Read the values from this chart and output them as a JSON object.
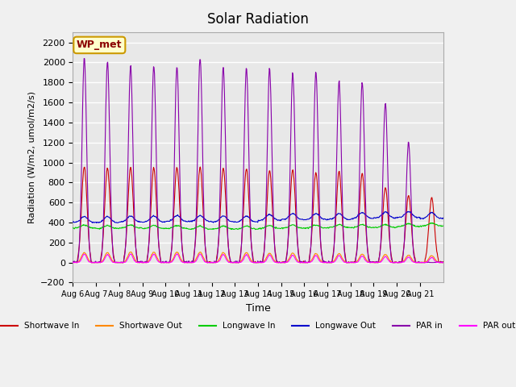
{
  "title": "Solar Radiation",
  "ylabel": "Radiation (W/m2, umol/m2/s)",
  "xlabel": "Time",
  "ylim": [
    -200,
    2300
  ],
  "yticks": [
    -200,
    0,
    200,
    400,
    600,
    800,
    1000,
    1200,
    1400,
    1600,
    1800,
    2000,
    2200
  ],
  "xtick_labels": [
    "Aug 6",
    "Aug 7",
    "Aug 8",
    "Aug 9",
    "Aug 10",
    "Aug 11",
    "Aug 12",
    "Aug 13",
    "Aug 14",
    "Aug 15",
    "Aug 16",
    "Aug 17",
    "Aug 18",
    "Aug 19",
    "Aug 20",
    "Aug 21"
  ],
  "bg_color": "#e8e8e8",
  "grid_color": "#ffffff",
  "station_label": "WP_met",
  "series": {
    "shortwave_in": {
      "color": "#cc0000",
      "label": "Shortwave In"
    },
    "shortwave_out": {
      "color": "#ff8800",
      "label": "Shortwave Out"
    },
    "longwave_in": {
      "color": "#00cc00",
      "label": "Longwave In"
    },
    "longwave_out": {
      "color": "#0000cc",
      "label": "Longwave Out"
    },
    "par_in": {
      "color": "#8800aa",
      "label": "PAR in"
    },
    "par_out": {
      "color": "#ff00ff",
      "label": "PAR out"
    }
  }
}
